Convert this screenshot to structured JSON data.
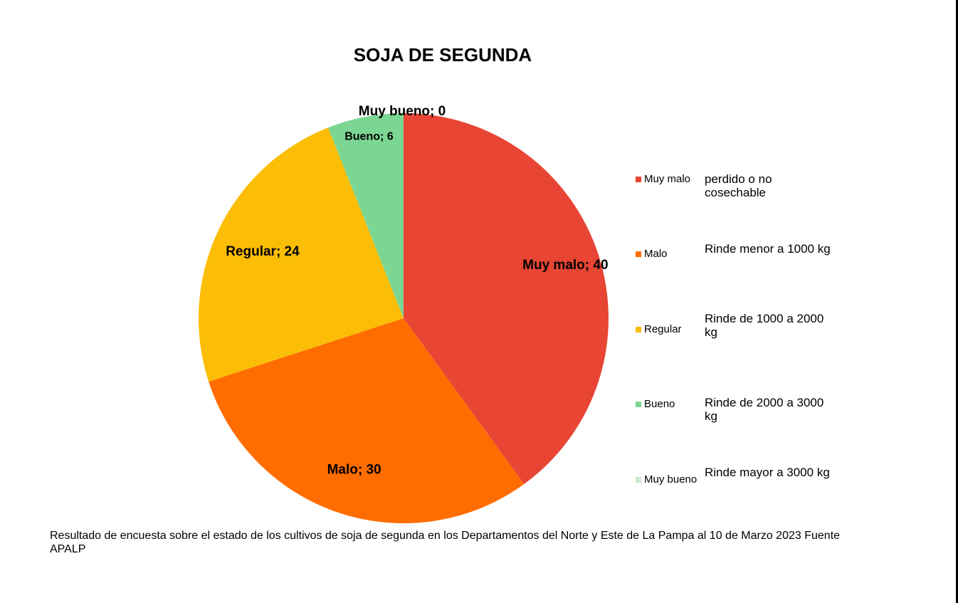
{
  "chart_data": {
    "type": "pie",
    "title": "SOJA DE SEGUNDA",
    "categories": [
      "Muy malo",
      "Malo",
      "Regular",
      "Bueno",
      "Muy bueno"
    ],
    "values": [
      40,
      30,
      24,
      6,
      0
    ],
    "colors": [
      "#e84534",
      "#ff6d00",
      "#fbbd06",
      "#7cd693",
      "#c6e9cf"
    ],
    "data_labels": [
      "Muy malo; 40",
      "Malo; 30",
      "Regular; 24",
      "Bueno; 6",
      "Muy bueno; 0"
    ],
    "legend_position": "right"
  },
  "legend": {
    "items": [
      {
        "name": "Muy malo",
        "description": "perdido o no cosechable"
      },
      {
        "name": "Malo",
        "description": "Rinde menor a 1000 kg"
      },
      {
        "name": "Regular",
        "description": "Rinde de 1000 a 2000 kg"
      },
      {
        "name": "Bueno",
        "description": "Rinde de 2000 a 3000 kg"
      },
      {
        "name": "Muy bueno",
        "description": "Rinde mayor a 3000 kg"
      }
    ]
  },
  "footnote": "Resultado de encuesta sobre el estado de los cultivos de soja de segunda en los Departamentos del Norte y Este de La Pampa al 10 de Marzo 2023  Fuente APALP"
}
